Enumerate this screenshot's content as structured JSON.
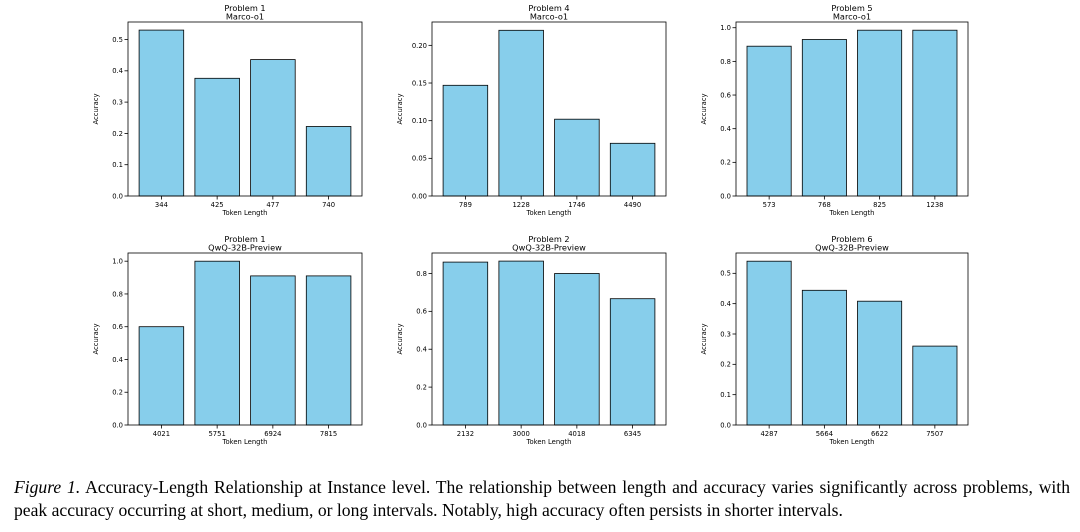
{
  "chart_data": [
    {
      "type": "bar",
      "title": "Problem 1",
      "subtitle": "Marco-o1",
      "xlabel": "Token Length",
      "ylabel": "Accuracy",
      "categories": [
        "344",
        "425",
        "477",
        "740"
      ],
      "values": [
        0.53,
        0.376,
        0.436,
        0.222
      ],
      "ylim": [
        0,
        0.556
      ],
      "yticks": [
        "0.0",
        "0.1",
        "0.2",
        "0.3",
        "0.4",
        "0.5"
      ],
      "bar_color": "#87ceeb",
      "edge_color": "#000000"
    },
    {
      "type": "bar",
      "title": "Problem 4",
      "subtitle": "Marco-o1",
      "xlabel": "Token Length",
      "ylabel": "Accuracy",
      "categories": [
        "789",
        "1228",
        "1746",
        "4490"
      ],
      "values": [
        0.147,
        0.22,
        0.102,
        0.07
      ],
      "ylim": [
        0,
        0.231
      ],
      "yticks": [
        "0.00",
        "0.05",
        "0.10",
        "0.15",
        "0.20"
      ],
      "bar_color": "#87ceeb",
      "edge_color": "#000000"
    },
    {
      "type": "bar",
      "title": "Problem 5",
      "subtitle": "Marco-o1",
      "xlabel": "Token Length",
      "ylabel": "Accuracy",
      "categories": [
        "573",
        "768",
        "825",
        "1238"
      ],
      "values": [
        0.89,
        0.93,
        0.985,
        0.985
      ],
      "ylim": [
        0,
        1.034
      ],
      "yticks": [
        "0.0",
        "0.2",
        "0.4",
        "0.6",
        "0.8",
        "1.0"
      ],
      "bar_color": "#87ceeb",
      "edge_color": "#000000"
    },
    {
      "type": "bar",
      "title": "Problem 1",
      "subtitle": "QwQ-32B-Preview",
      "xlabel": "Token Length",
      "ylabel": "Accuracy",
      "categories": [
        "4021",
        "5751",
        "6924",
        "7815"
      ],
      "values": [
        0.6,
        1.0,
        0.91,
        0.91
      ],
      "ylim": [
        0,
        1.05
      ],
      "yticks": [
        "0.0",
        "0.2",
        "0.4",
        "0.6",
        "0.8",
        "1.0"
      ],
      "bar_color": "#87ceeb",
      "edge_color": "#000000"
    },
    {
      "type": "bar",
      "title": "Problem 2",
      "subtitle": "QwQ-32B-Preview",
      "xlabel": "Token Length",
      "ylabel": "Accuracy",
      "categories": [
        "2132",
        "3000",
        "4018",
        "6345"
      ],
      "values": [
        0.86,
        0.865,
        0.8,
        0.667
      ],
      "ylim": [
        0,
        0.908
      ],
      "yticks": [
        "0.0",
        "0.2",
        "0.4",
        "0.6",
        "0.8"
      ],
      "bar_color": "#87ceeb",
      "edge_color": "#000000"
    },
    {
      "type": "bar",
      "title": "Problem 6",
      "subtitle": "QwQ-32B-Preview",
      "xlabel": "Token Length",
      "ylabel": "Accuracy",
      "categories": [
        "4287",
        "5664",
        "6622",
        "7507"
      ],
      "values": [
        0.54,
        0.444,
        0.408,
        0.26
      ],
      "ylim": [
        0,
        0.567
      ],
      "yticks": [
        "0.0",
        "0.1",
        "0.2",
        "0.3",
        "0.4",
        "0.5"
      ],
      "bar_color": "#87ceeb",
      "edge_color": "#000000"
    }
  ],
  "caption": {
    "label": "Figure 1.",
    "text": " Accuracy-Length Relationship at Instance level.  The relationship between length and accuracy varies significantly across problems, with peak accuracy occurring at short, medium, or long intervals. Notably, high accuracy often persists in shorter intervals."
  }
}
